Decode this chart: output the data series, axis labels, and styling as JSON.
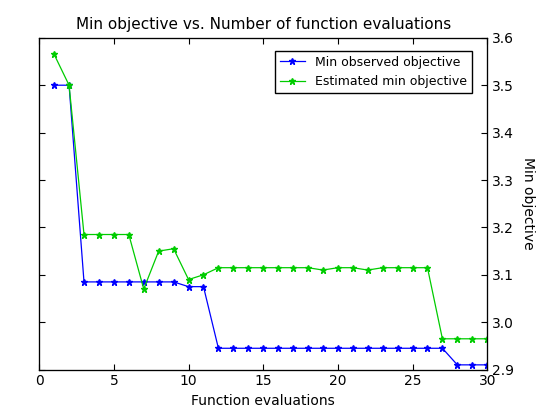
{
  "title": "Min objective vs. Number of function evaluations",
  "xlabel": "Function evaluations",
  "ylabel": "Min objective",
  "xlim": [
    0,
    30
  ],
  "ylim": [
    2.9,
    3.6
  ],
  "yticks": [
    2.9,
    3.0,
    3.1,
    3.2,
    3.3,
    3.4,
    3.5,
    3.6
  ],
  "xticks": [
    0,
    5,
    10,
    15,
    20,
    25,
    30
  ],
  "blue_x": [
    1,
    2,
    3,
    4,
    5,
    6,
    7,
    8,
    9,
    10,
    11,
    12,
    13,
    14,
    15,
    16,
    17,
    18,
    19,
    20,
    21,
    22,
    23,
    24,
    25,
    26,
    27,
    28,
    29,
    30
  ],
  "blue_y": [
    3.5,
    3.5,
    3.085,
    3.085,
    3.085,
    3.085,
    3.085,
    3.085,
    3.085,
    3.075,
    3.075,
    2.945,
    2.945,
    2.945,
    2.945,
    2.945,
    2.945,
    2.945,
    2.945,
    2.945,
    2.945,
    2.945,
    2.945,
    2.945,
    2.945,
    2.945,
    2.945,
    2.91,
    2.91,
    2.91
  ],
  "green_x": [
    1,
    2,
    3,
    4,
    5,
    6,
    7,
    8,
    9,
    10,
    11,
    12,
    13,
    14,
    15,
    16,
    17,
    18,
    19,
    20,
    21,
    22,
    23,
    24,
    25,
    26,
    27,
    28,
    29,
    30
  ],
  "green_y": [
    3.565,
    3.5,
    3.185,
    3.185,
    3.185,
    3.185,
    3.07,
    3.15,
    3.155,
    3.09,
    3.1,
    3.115,
    3.115,
    3.115,
    3.115,
    3.115,
    3.115,
    3.115,
    3.11,
    3.115,
    3.115,
    3.11,
    3.115,
    3.115,
    3.115,
    3.115,
    2.965,
    2.965,
    2.965,
    2.965
  ],
  "blue_color": "#0000ff",
  "green_color": "#00cc00",
  "blue_label": "Min observed objective",
  "green_label": "Estimated min objective",
  "marker": "*",
  "linewidth": 0.9,
  "markersize": 5,
  "background_color": "#ffffff"
}
